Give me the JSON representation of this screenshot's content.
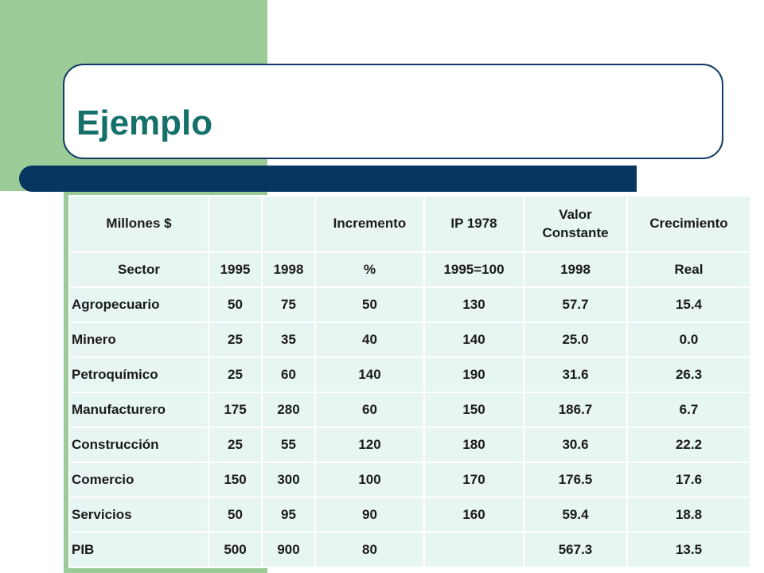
{
  "slide": {
    "title": "Ejemplo"
  },
  "table": {
    "header_row1": [
      "Millones $",
      "",
      "",
      "Incremento",
      "IP 1978",
      "Valor Constante",
      "Crecimiento"
    ],
    "header_row2": [
      "Sector",
      "1995",
      "1998",
      "%",
      "1995=100",
      "1998",
      "Real"
    ],
    "rows": [
      [
        "Agropecuario",
        "50",
        "75",
        "50",
        "130",
        "57.7",
        "15.4"
      ],
      [
        "Minero",
        "25",
        "35",
        "40",
        "140",
        "25.0",
        "0.0"
      ],
      [
        "Petroquímico",
        "25",
        "60",
        "140",
        "190",
        "31.6",
        "26.3"
      ],
      [
        "Manufacturero",
        "175",
        "280",
        "60",
        "150",
        "186.7",
        "6.7"
      ],
      [
        "Construcción",
        "25",
        "55",
        "120",
        "180",
        "30.6",
        "22.2"
      ],
      [
        "Comercio",
        "150",
        "300",
        "100",
        "170",
        "176.5",
        "17.6"
      ],
      [
        "Servicios",
        "50",
        "95",
        "90",
        "160",
        "59.4",
        "18.8"
      ],
      [
        "PIB",
        "500",
        "900",
        "80",
        "",
        "567.3",
        "13.5"
      ]
    ]
  },
  "colors": {
    "title": "#16706a",
    "panel": "#9bcb97",
    "bar": "#073660",
    "cell": "#e7f5f3"
  }
}
